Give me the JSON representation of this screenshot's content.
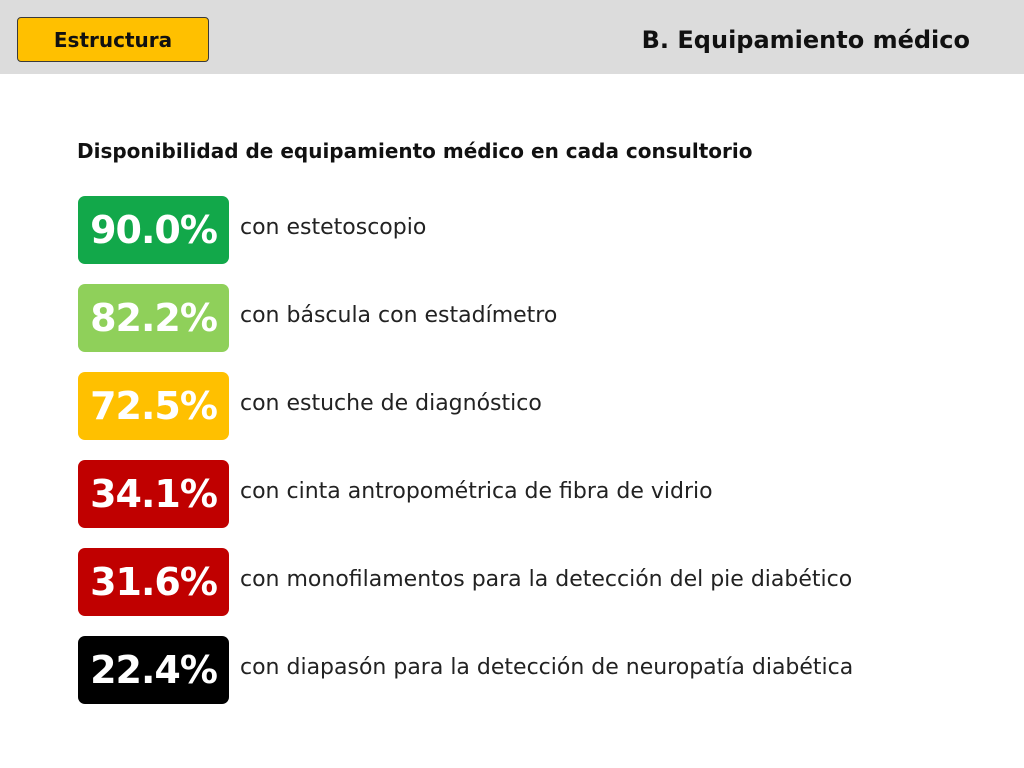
{
  "header": {
    "section_badge": "Estructura",
    "section_title": "B. Equipamiento médico"
  },
  "subtitle": "Disponibilidad de equipamiento médico en cada consultorio",
  "items": [
    {
      "value": "90.0%",
      "label": "con estetoscopio",
      "color": "#12a84a"
    },
    {
      "value": "82.2%",
      "label": "con báscula con estadímetro",
      "color": "#8fd05a"
    },
    {
      "value": "72.5%",
      "label": "con estuche de diagnóstico",
      "color": "#ffc000"
    },
    {
      "value": "34.1%",
      "label": "con cinta antropométrica de fibra de vidrio",
      "color": "#c00000"
    },
    {
      "value": "31.6%",
      "label": "con monofilamentos para la detección del pie diabético",
      "color": "#c00000"
    },
    {
      "value": "22.4%",
      "label": "con diapasón para la detección de neuropatía diabética",
      "color": "#000000"
    }
  ],
  "colors": {
    "header_bar": "#dcdcdc",
    "badge_fill": "#ffc000"
  }
}
